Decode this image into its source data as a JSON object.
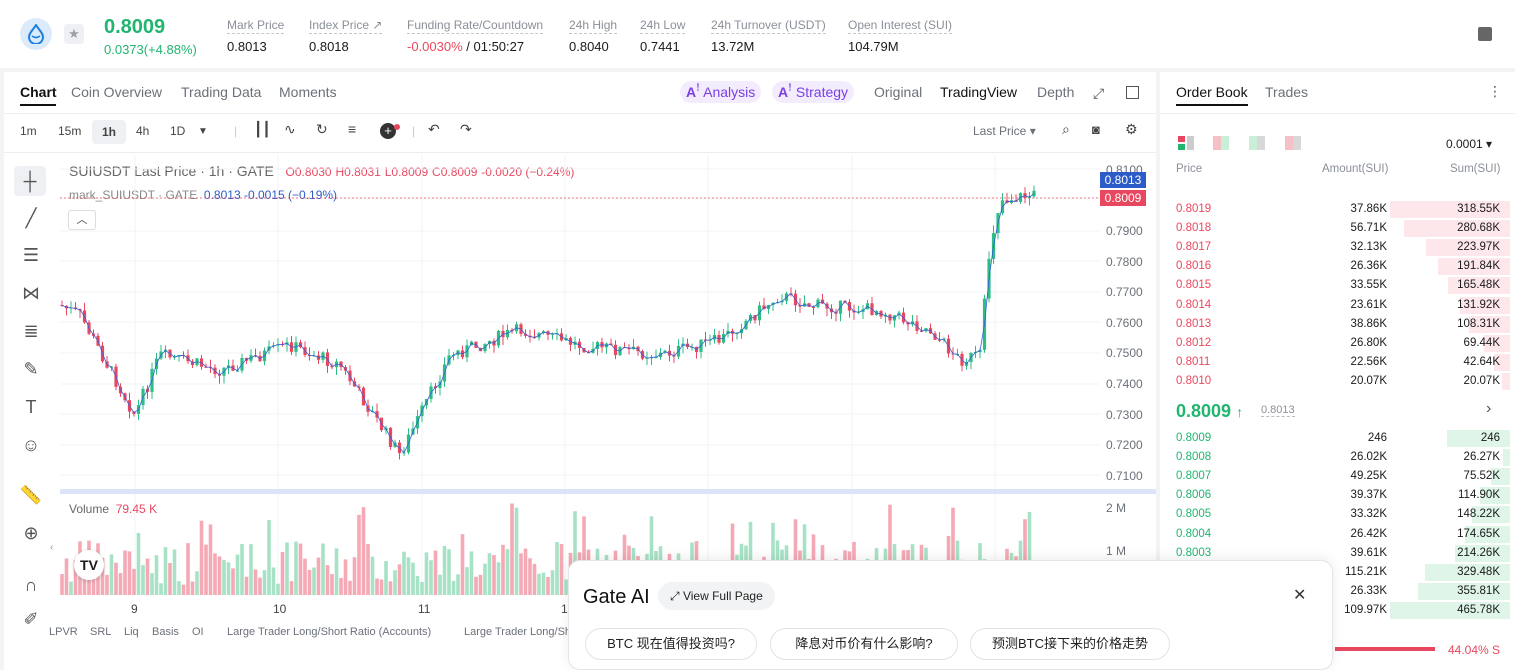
{
  "header": {
    "price": "0.8009",
    "change": "0.0373(+4.88%)",
    "stats": [
      {
        "label": "Mark Price",
        "value": "0.8013"
      },
      {
        "label": "Index Price ↗",
        "value": "0.8018"
      },
      {
        "label": "Funding Rate/Countdown",
        "value_red": "-0.0030%",
        "value": " / 01:50:27"
      },
      {
        "label": "24h High",
        "value": "0.8040"
      },
      {
        "label": "24h Low",
        "value": "0.7441"
      },
      {
        "label": "24h Turnover (USDT)",
        "value": "13.72M"
      },
      {
        "label": "Open Interest (SUI)",
        "value": "104.79M"
      }
    ]
  },
  "chart_tabs": [
    "Chart",
    "Coin Overview",
    "Trading Data",
    "Moments"
  ],
  "chart_tools": {
    "analysis": "Analysis",
    "strategy": "Strategy",
    "original": "Original",
    "tradingview": "TradingView",
    "depth": "Depth"
  },
  "intervals": [
    "1m",
    "15m",
    "1h",
    "4h",
    "1D"
  ],
  "last_price_select": "Last Price",
  "legend": {
    "line1": "SUIUSDT Last Price · 1h · GATE",
    "o": "O0.8030",
    "h": "H0.8031",
    "l": "L0.8009",
    "c": "C0.8009",
    "chg": "-0.0020 (−0.24%)",
    "line2": "mark_SUIUSDT · GATE",
    "mark_val": "0.8013",
    "mark_chg": "-0.0015 (−0.19%)"
  },
  "y_axis": [
    "0.8100",
    "0.7900",
    "0.7800",
    "0.7700",
    "0.7600",
    "0.7500",
    "0.7400",
    "0.7300",
    "0.7200",
    "0.7100"
  ],
  "price_tags": {
    "mark": "0.8013",
    "last": "0.8009"
  },
  "volume": {
    "label": "Volume",
    "value": "79.45 K",
    "axis": [
      "2 M",
      "1 M"
    ]
  },
  "x_axis": [
    "9",
    "10",
    "11",
    "1"
  ],
  "bottom_tabs": [
    "LPVR",
    "SRL",
    "Liq",
    "Basis",
    "OI",
    "Large Trader Long/Short Ratio (Accounts)",
    "Large Trader Long/Sh"
  ],
  "orderbook": {
    "tabs": [
      "Order Book",
      "Trades"
    ],
    "precision": "0.0001",
    "cols": [
      "Price",
      "Amount(SUI)",
      "Sum(SUI)"
    ],
    "asks": [
      [
        "0.8019",
        "37.86K",
        "318.55K"
      ],
      [
        "0.8018",
        "56.71K",
        "280.68K"
      ],
      [
        "0.8017",
        "32.13K",
        "223.97K"
      ],
      [
        "0.8016",
        "26.36K",
        "191.84K"
      ],
      [
        "0.8015",
        "33.55K",
        "165.48K"
      ],
      [
        "0.8014",
        "23.61K",
        "131.92K"
      ],
      [
        "0.8013",
        "38.86K",
        "108.31K"
      ],
      [
        "0.8012",
        "26.80K",
        "69.44K"
      ],
      [
        "0.8011",
        "22.56K",
        "42.64K"
      ],
      [
        "0.8010",
        "20.07K",
        "20.07K"
      ]
    ],
    "mid": "0.8009",
    "mid_mark": "0.8013",
    "bids": [
      [
        "0.8009",
        "246",
        "246"
      ],
      [
        "0.8008",
        "26.02K",
        "26.27K"
      ],
      [
        "0.8007",
        "49.25K",
        "75.52K"
      ],
      [
        "0.8006",
        "39.37K",
        "114.90K"
      ],
      [
        "0.8005",
        "33.32K",
        "148.22K"
      ],
      [
        "0.8004",
        "26.42K",
        "174.65K"
      ],
      [
        "0.8003",
        "39.61K",
        "214.26K"
      ],
      [
        "",
        "115.21K",
        "329.48K"
      ],
      [
        "",
        "26.33K",
        "355.81K"
      ],
      [
        "",
        "109.97K",
        "465.78K"
      ]
    ],
    "ratio": "44.04% S"
  },
  "ai": {
    "title": "Gate AI",
    "view": "View Full Page",
    "chips": [
      "BTC 现在值得投资吗?",
      "降息对币价有什么影响?",
      "预测BTC接下来的价格走势"
    ]
  },
  "colors": {
    "up": "#21b56f",
    "down": "#e8485f"
  }
}
